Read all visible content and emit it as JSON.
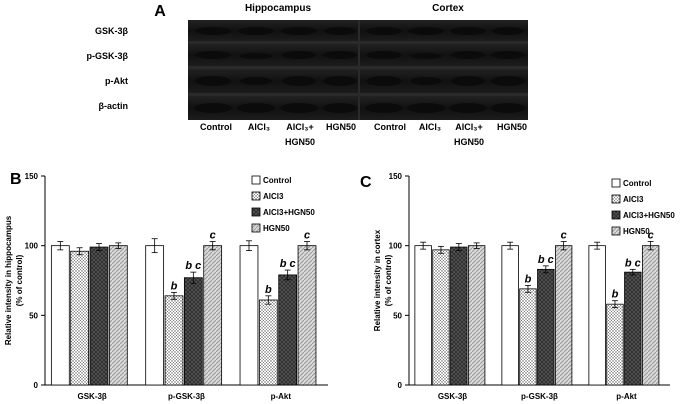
{
  "panel_a": {
    "label": "A",
    "regions": [
      "Hippocampus",
      "Cortex"
    ],
    "rows": [
      "GSK-3β",
      "p-GSK-3β",
      "p-Akt",
      "β-actin"
    ],
    "lanes": {
      "control": "Control",
      "alcl3": "AlCl₃",
      "combo_line1": "AlCl₃+",
      "combo_line2": "HGN50",
      "hgn50": "HGN50"
    }
  },
  "chart_data": [
    {
      "panel": "B",
      "type": "bar",
      "ylabel_line1": "Relative intensity in hippocampus",
      "ylabel_line2": "(% of control)",
      "ylim": [
        0,
        150
      ],
      "yticks": [
        0,
        50,
        100,
        150
      ],
      "categories": [
        "GSK-3β",
        "p-GSK-3β",
        "p-Akt"
      ],
      "series": [
        {
          "name": "Control",
          "values": [
            100,
            100,
            100
          ],
          "errors": [
            3,
            5,
            3.5
          ],
          "letters": [
            "",
            "",
            ""
          ],
          "pattern": "white"
        },
        {
          "name": "AlCl3",
          "values": [
            96,
            64,
            61
          ],
          "errors": [
            2.5,
            2.5,
            3
          ],
          "letters": [
            "",
            "b",
            "b"
          ],
          "pattern": "dots"
        },
        {
          "name": "AlCl3+HGN50",
          "values": [
            99,
            77,
            79
          ],
          "errors": [
            2.5,
            4,
            3.5
          ],
          "letters": [
            "",
            "b c",
            "b c"
          ],
          "pattern": "dark"
        },
        {
          "name": "HGN50",
          "values": [
            100,
            100,
            100
          ],
          "errors": [
            2,
            3,
            3
          ],
          "letters": [
            "",
            "c",
            "c"
          ],
          "pattern": "hatch"
        }
      ],
      "legend_position": "top-right"
    },
    {
      "panel": "C",
      "type": "bar",
      "ylabel_line1": "Relative intensity in cortex",
      "ylabel_line2": "(% of control)",
      "ylim": [
        0,
        150
      ],
      "yticks": [
        0,
        50,
        100,
        150
      ],
      "categories": [
        "GSK-3β",
        "p-GSK-3β",
        "p-Akt"
      ],
      "series": [
        {
          "name": "Control",
          "values": [
            100,
            100,
            100
          ],
          "errors": [
            2.5,
            2.5,
            2.5
          ],
          "letters": [
            "",
            "",
            ""
          ],
          "pattern": "white"
        },
        {
          "name": "AlCl3",
          "values": [
            97,
            69,
            58
          ],
          "errors": [
            2.5,
            2.5,
            2.5
          ],
          "letters": [
            "",
            "b",
            "b"
          ],
          "pattern": "dots"
        },
        {
          "name": "AlCl3+HGN50",
          "values": [
            99,
            83,
            81
          ],
          "errors": [
            2.5,
            2.5,
            2
          ],
          "letters": [
            "",
            "b c",
            "b c"
          ],
          "pattern": "dark"
        },
        {
          "name": "HGN50",
          "values": [
            100,
            100,
            100
          ],
          "errors": [
            2,
            3,
            3
          ],
          "letters": [
            "",
            "c",
            "c"
          ],
          "pattern": "hatch"
        }
      ],
      "legend_position": "top-right"
    }
  ]
}
